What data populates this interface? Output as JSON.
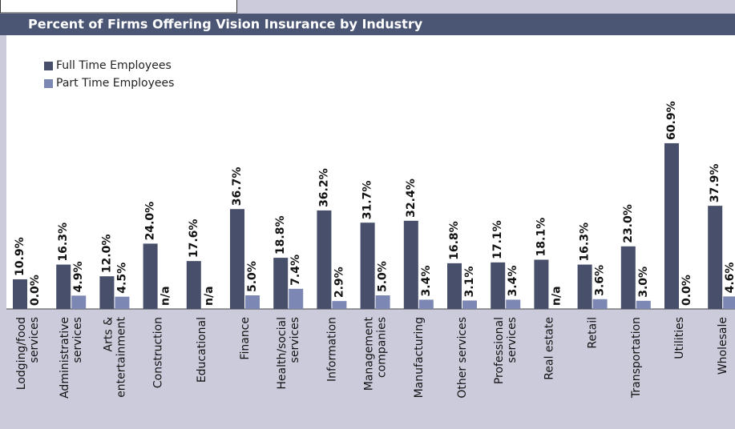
{
  "chart_data": {
    "type": "bar",
    "title": "Percent of Firms Offering Vision Insurance by Industry",
    "categories": [
      [
        "Lodging/food",
        "services"
      ],
      [
        "Administrative",
        "services"
      ],
      [
        "Arts &",
        "entertainment"
      ],
      [
        "Construction"
      ],
      [
        "Educational"
      ],
      [
        "Finance"
      ],
      [
        "Health/social",
        "services"
      ],
      [
        "Information"
      ],
      [
        "Management",
        "companies"
      ],
      [
        "Manufacturing"
      ],
      [
        "Other services"
      ],
      [
        "Professional",
        "services"
      ],
      [
        "Real estate"
      ],
      [
        "Retail"
      ],
      [
        "Transportation"
      ],
      [
        "Utilities"
      ],
      [
        "Wholesale"
      ]
    ],
    "series": [
      {
        "name": "Full Time Employees",
        "color": "#474f6b",
        "values": [
          10.9,
          16.3,
          12.0,
          24.0,
          17.6,
          36.7,
          18.8,
          36.2,
          31.7,
          32.4,
          16.8,
          17.1,
          18.1,
          16.3,
          23.0,
          60.9,
          37.9
        ],
        "value_labels": [
          "10.9%",
          "16.3%",
          "12.0%",
          "24.0%",
          "17.6%",
          "36.7%",
          "18.8%",
          "36.2%",
          "31.7%",
          "32.4%",
          "16.8%",
          "17.1%",
          "18.1%",
          "16.3%",
          "23.0%",
          "60.9%",
          "37.9%"
        ]
      },
      {
        "name": "Part Time Employees",
        "color": "#7d87b3",
        "values": [
          0.0,
          4.9,
          4.5,
          null,
          null,
          5.0,
          7.4,
          2.9,
          5.0,
          3.4,
          3.1,
          3.4,
          null,
          3.6,
          3.0,
          0.0,
          4.6
        ],
        "value_labels": [
          "0.0%",
          "4.9%",
          "4.5%",
          "n/a",
          "n/a",
          "5.0%",
          "7.4%",
          "2.9%",
          "5.0%",
          "3.4%",
          "3.1%",
          "3.4%",
          "n/a",
          "3.6%",
          "3.0%",
          "0.0%",
          "4.6%"
        ]
      }
    ],
    "ylim": [
      0,
      100
    ],
    "legend": "upper left"
  }
}
